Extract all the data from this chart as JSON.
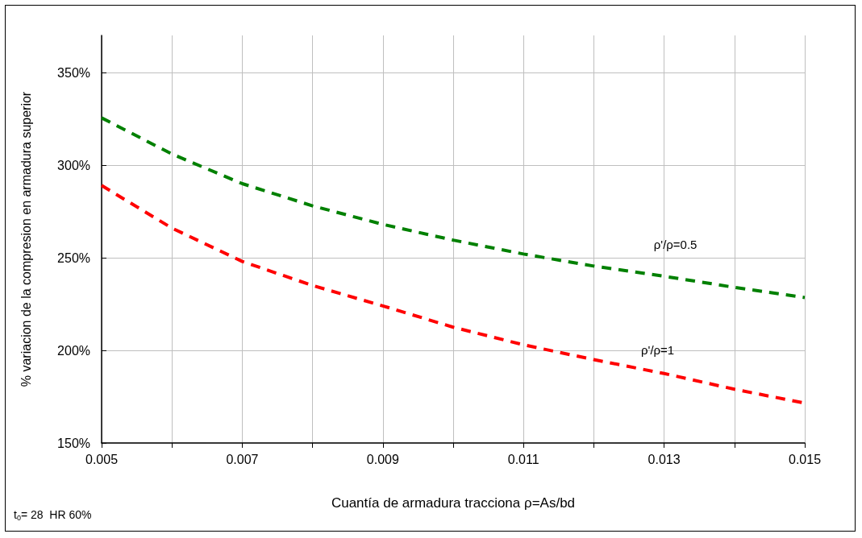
{
  "chart_data": {
    "type": "line",
    "xlabel": "Cuantía de armadura tracciona ρ=As/bd",
    "ylabel": "% variacion de la compresion en armadura superior",
    "x": [
      0.005,
      0.006,
      0.007,
      0.008,
      0.009,
      0.01,
      0.011,
      0.012,
      0.013,
      0.014,
      0.015
    ],
    "series": [
      {
        "name": "ρ'/ρ=0.5",
        "color": "#008000",
        "line_style": "dashed",
        "values": [
          325.5,
          306,
          290,
          278,
          268,
          259.5,
          252,
          245.5,
          240,
          234,
          228.5
        ]
      },
      {
        "name": "ρ'/ρ=1",
        "color": "#ff0000",
        "line_style": "dashed",
        "values": [
          289,
          266,
          248,
          235,
          224,
          212.5,
          203,
          195,
          187.5,
          179,
          171.5
        ]
      }
    ],
    "xlim": [
      0.005,
      0.015
    ],
    "xticks": [
      0.005,
      {
        "value": 0.006,
        "label": null
      },
      0.007,
      {
        "value": 0.008,
        "label": null
      },
      0.009,
      {
        "value": 0.01,
        "label": null
      },
      0.011,
      {
        "value": 0.012,
        "label": null
      },
      0.013,
      {
        "value": 0.014,
        "label": null
      },
      0.015
    ],
    "ylim": [
      150,
      370
    ],
    "yticks": [
      {
        "value": 150,
        "label": "150%"
      },
      {
        "value": 200,
        "label": "200%"
      },
      {
        "value": 250,
        "label": "250%"
      },
      {
        "value": 300,
        "label": "300%"
      },
      {
        "value": 350,
        "label": "350%"
      }
    ],
    "grid": true,
    "annotations": [
      "t$_{0}$= 28  HR 60%"
    ]
  }
}
